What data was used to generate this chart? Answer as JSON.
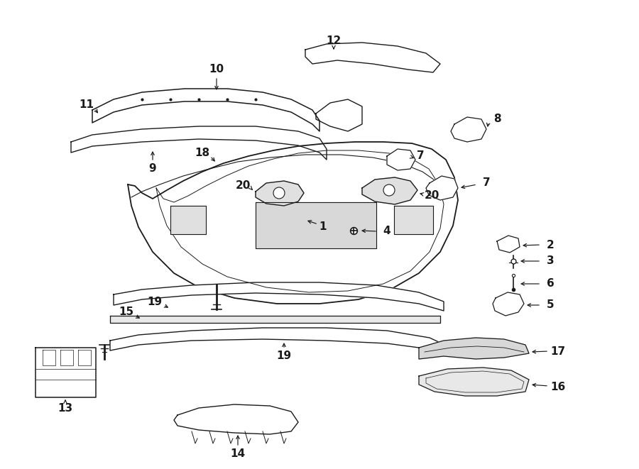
{
  "bg_color": "#ffffff",
  "line_color": "#1a1a1a",
  "fig_width": 9.0,
  "fig_height": 6.61,
  "dpi": 100,
  "label_fs": 11,
  "arrow_lw": 0.9
}
